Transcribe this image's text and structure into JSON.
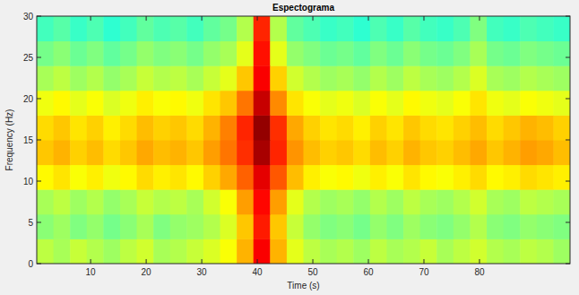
{
  "chart_data": {
    "type": "heatmap",
    "title": "Espectograma",
    "x_label": "Time (s)",
    "y_label": "Frequency (Hz)",
    "x": [
      1.8,
      4.8,
      7.8,
      10.8,
      13.8,
      16.8,
      19.8,
      22.8,
      25.8,
      28.8,
      31.8,
      34.8,
      37.8,
      40.8,
      43.8,
      46.8,
      49.8,
      52.8,
      55.8,
      58.8,
      61.8,
      64.8,
      67.8,
      70.8,
      73.8,
      76.8,
      79.8,
      82.8,
      85.8,
      88.8,
      91.8,
      94.8
    ],
    "y": [
      1.5,
      4.5,
      7.5,
      10.5,
      13.5,
      16.5,
      19.5,
      22.5,
      25.5,
      28.5
    ],
    "z": [
      [
        5.6,
        5.4,
        5.7,
        5.5,
        5.3,
        5.6,
        5.8,
        5.4,
        5.5,
        5.7,
        5.9,
        6.2,
        7.0,
        8.8,
        7.0,
        6.0,
        5.6,
        5.4,
        5.5,
        5.3,
        5.6,
        5.4,
        5.5,
        5.7,
        5.4,
        5.6,
        5.8,
        5.5,
        5.4,
        5.6,
        5.5,
        5.3
      ],
      [
        5.1,
        5.3,
        5.0,
        5.2,
        4.9,
        5.1,
        5.4,
        5.0,
        5.2,
        5.3,
        5.5,
        5.9,
        6.8,
        8.5,
        6.8,
        5.7,
        5.2,
        5.0,
        5.1,
        4.9,
        5.2,
        5.0,
        5.3,
        5.1,
        5.0,
        5.2,
        5.5,
        5.1,
        5.0,
        5.2,
        5.1,
        5.0
      ],
      [
        5.4,
        5.6,
        5.3,
        5.5,
        5.2,
        5.4,
        5.7,
        5.5,
        5.6,
        5.4,
        5.8,
        6.2,
        7.2,
        8.7,
        7.2,
        6.0,
        5.5,
        5.3,
        5.4,
        5.2,
        5.5,
        5.3,
        5.6,
        5.4,
        5.3,
        5.5,
        5.8,
        5.4,
        5.3,
        5.6,
        5.5,
        5.4
      ],
      [
        6.3,
        6.5,
        6.2,
        6.4,
        6.1,
        6.3,
        6.6,
        6.4,
        6.5,
        6.3,
        6.7,
        7.1,
        7.8,
        9.0,
        7.9,
        6.9,
        6.4,
        6.2,
        6.3,
        6.1,
        6.4,
        6.2,
        6.5,
        6.3,
        6.2,
        6.4,
        6.6,
        6.3,
        6.4,
        6.6,
        6.5,
        6.4
      ],
      [
        6.8,
        7.0,
        6.7,
        6.9,
        6.6,
        6.8,
        7.1,
        6.9,
        7.0,
        6.8,
        7.2,
        7.6,
        8.3,
        9.6,
        8.4,
        7.3,
        6.9,
        6.7,
        6.8,
        6.6,
        6.9,
        6.7,
        7.0,
        6.8,
        6.7,
        6.9,
        7.1,
        6.8,
        7.0,
        7.2,
        7.1,
        6.9
      ],
      [
        6.6,
        6.8,
        6.5,
        6.7,
        6.4,
        6.6,
        6.9,
        6.7,
        6.8,
        6.6,
        7.0,
        7.5,
        8.4,
        9.8,
        8.3,
        7.1,
        6.7,
        6.5,
        6.6,
        6.4,
        6.7,
        6.5,
        6.8,
        6.6,
        6.5,
        6.7,
        6.9,
        6.6,
        6.8,
        7.0,
        6.9,
        6.7
      ],
      [
        6.1,
        6.3,
        6.0,
        6.2,
        5.9,
        6.1,
        6.4,
        6.2,
        6.3,
        6.1,
        6.5,
        6.8,
        7.6,
        9.3,
        7.4,
        6.5,
        6.2,
        6.0,
        6.1,
        5.9,
        6.2,
        6.0,
        6.3,
        6.1,
        6.0,
        6.2,
        6.5,
        6.1,
        6.0,
        6.2,
        6.1,
        6.0
      ],
      [
        5.4,
        5.6,
        5.3,
        5.5,
        5.2,
        5.4,
        5.7,
        5.5,
        5.6,
        5.4,
        5.7,
        6.0,
        6.8,
        8.8,
        6.7,
        5.8,
        5.5,
        5.3,
        5.4,
        5.2,
        5.5,
        5.3,
        5.6,
        5.4,
        5.3,
        5.5,
        5.9,
        5.4,
        5.3,
        5.5,
        5.4,
        5.3
      ],
      [
        4.9,
        5.1,
        4.8,
        5.0,
        4.7,
        4.9,
        5.2,
        5.0,
        5.1,
        4.9,
        5.2,
        5.4,
        6.0,
        8.6,
        6.0,
        5.2,
        5.0,
        4.8,
        4.9,
        4.7,
        5.0,
        4.8,
        5.1,
        4.9,
        4.8,
        5.0,
        5.4,
        4.9,
        4.8,
        5.0,
        4.9,
        4.8
      ],
      [
        4.4,
        4.6,
        4.3,
        4.5,
        4.2,
        4.4,
        4.7,
        4.5,
        4.6,
        4.4,
        4.7,
        4.9,
        5.5,
        8.4,
        5.5,
        4.7,
        4.5,
        4.3,
        4.4,
        4.2,
        4.5,
        4.3,
        4.6,
        4.4,
        4.3,
        4.5,
        5.0,
        4.4,
        4.3,
        4.5,
        4.4,
        4.3
      ]
    ],
    "zlim": [
      0,
      10
    ],
    "xlim": [
      0.3,
      96.3
    ],
    "xticks": [
      10,
      20,
      30,
      40,
      50,
      60,
      70,
      80
    ],
    "ylim": [
      0,
      30
    ],
    "yticks": [
      0,
      5,
      10,
      15,
      20,
      25,
      30
    ]
  }
}
